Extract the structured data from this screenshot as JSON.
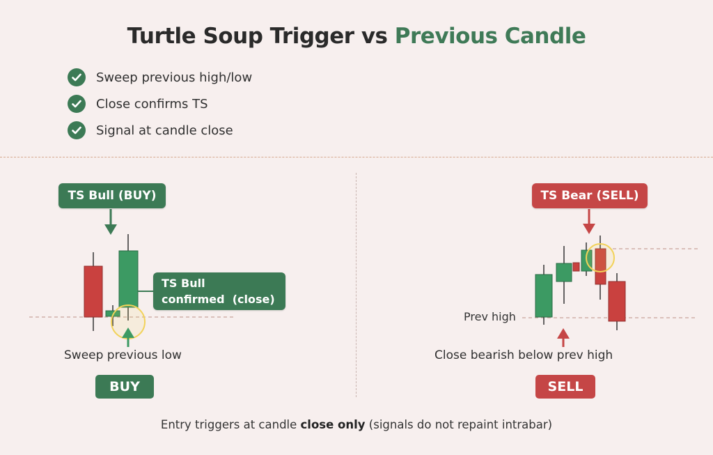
{
  "title": {
    "part1": "Turtle Soup Trigger vs ",
    "part2": "Previous Candle"
  },
  "checklist": [
    {
      "text": "Sweep previous high/low",
      "icon": "check-icon"
    },
    {
      "text": "Close confirms TS",
      "icon": "check-icon"
    },
    {
      "text": "Signal at candle close",
      "icon": "check-icon"
    }
  ],
  "left_panel": {
    "top_label": "TS Bull (BUY)",
    "confirm_label_line1": "TS Bull",
    "confirm_label_line2": "confirmed  (close)",
    "caption": "Sweep previous low",
    "badge": "BUY"
  },
  "right_panel": {
    "top_label": "TS Bear (SELL)",
    "level_label": "Prev high",
    "caption": "Close bearish below prev high",
    "badge": "SELL"
  },
  "footer": {
    "before": "Entry triggers at candle ",
    "bold": "close only",
    "after": " (signals do not repaint intrabar)"
  },
  "colors": {
    "bull": "#3c9a63",
    "bear": "#c9413f",
    "accent_green": "#3c7a55",
    "accent_red": "#c54646",
    "highlight": "#f2d259"
  }
}
